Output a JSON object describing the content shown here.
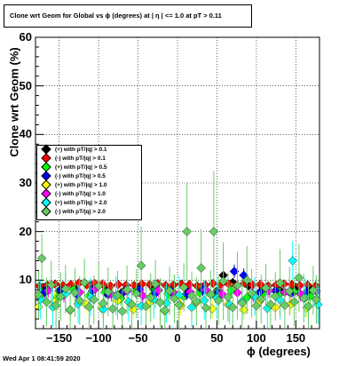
{
  "title": "Clone wrt Geom for Global vs ϕ (degrees) at | η | <= 1.0 at pT > 0.11",
  "timestamp": "Wed Apr  1 08:41:59 2020",
  "legend": [
    {
      "label": "(+) with pT/|q| > 0.1",
      "color": "#000000"
    },
    {
      "label": "(-) with pT/|q| > 0.1",
      "color": "#ff0000"
    },
    {
      "label": "(+) with pT/|q| > 0.5",
      "color": "#00ff00"
    },
    {
      "label": "(-) with pT/|q| > 0.5",
      "color": "#0000ff"
    },
    {
      "label": "(+) with pT/|q| > 1.0",
      "color": "#ffff00"
    },
    {
      "label": "(-) with pT/|q| > 1.0",
      "color": "#ff00ff"
    },
    {
      "label": "(+) with pT/|q| > 2.0",
      "color": "#00ffff"
    },
    {
      "label": "(-) with pT/|q| > 2.0",
      "color": "#66cc66"
    }
  ],
  "chart_data": {
    "type": "scatter",
    "xlabel": "ϕ (degrees)",
    "ylabel": "Clone wrt Geom (%)",
    "xlim": [
      -180,
      180
    ],
    "ylim": [
      0,
      60
    ],
    "xticks": [
      -150,
      -100,
      -50,
      0,
      50,
      100,
      150
    ],
    "yticks": [
      10,
      20,
      30,
      40,
      50,
      60
    ],
    "xtick_labels": [
      "−150",
      "−100",
      "−50",
      "0",
      "50",
      "100",
      "150"
    ],
    "ytick_labels": [
      "10",
      "20",
      "30",
      "40",
      "50",
      "60"
    ],
    "grid": true,
    "legend_position": "middle-left",
    "series": [
      {
        "name": "(+) with pT/|q| > 0.1",
        "color": "#000000",
        "x": [
          -170,
          -150,
          -130,
          -110,
          -90,
          -70,
          -50,
          -30,
          -10,
          10,
          30,
          50,
          58,
          70,
          90,
          110,
          130,
          150,
          170
        ],
        "y": [
          8.5,
          7.8,
          8.2,
          9.0,
          8.0,
          7.6,
          8.4,
          8.1,
          7.9,
          8.3,
          8.6,
          7.8,
          11.0,
          9.5,
          8.8,
          8.2,
          7.9,
          8.4,
          8.0
        ],
        "err": [
          0.8,
          0.8,
          0.8,
          0.8,
          0.8,
          0.8,
          0.8,
          0.8,
          0.8,
          0.8,
          0.8,
          0.8,
          1.0,
          0.9,
          0.8,
          0.8,
          0.8,
          0.8,
          0.8
        ]
      },
      {
        "name": "(-) with pT/|q| > 0.1",
        "color": "#ff0000",
        "x": [
          -175,
          -165,
          -155,
          -145,
          -135,
          -125,
          -115,
          -105,
          -95,
          -85,
          -75,
          -65,
          -55,
          -45,
          -35,
          -25,
          -15,
          -5,
          5,
          15,
          25,
          35,
          45,
          55,
          65,
          75,
          85,
          95,
          105,
          115,
          125,
          135,
          145,
          155,
          165,
          175
        ],
        "y": [
          8.8,
          9.0,
          9.2,
          8.9,
          9.1,
          9.4,
          9.0,
          9.3,
          9.2,
          8.8,
          9.1,
          9.0,
          8.9,
          9.2,
          9.1,
          9.3,
          8.9,
          9.0,
          9.2,
          9.1,
          8.8,
          9.0,
          9.3,
          9.1,
          9.2,
          8.9,
          9.4,
          9.0,
          9.1,
          8.8,
          9.0,
          9.2,
          9.1,
          8.9,
          9.0,
          8.8
        ],
        "err": [
          0.7,
          0.7,
          0.7,
          0.7,
          0.7,
          0.7,
          0.7,
          0.7,
          0.7,
          0.7,
          0.7,
          0.7,
          0.7,
          0.7,
          0.7,
          0.7,
          0.7,
          0.7,
          0.7,
          0.7,
          0.7,
          0.7,
          0.7,
          0.7,
          0.7,
          0.7,
          0.7,
          0.7,
          0.7,
          0.7,
          0.7,
          0.7,
          0.7,
          0.7,
          0.7,
          0.7
        ]
      },
      {
        "name": "(+) with pT/|q| > 0.5",
        "color": "#00ff00",
        "x": [
          -172,
          -152,
          -132,
          -112,
          -92,
          -72,
          -52,
          -32,
          -12,
          8,
          28,
          48,
          68,
          88,
          108,
          128,
          148,
          168
        ],
        "y": [
          7.0,
          6.5,
          8.0,
          6.8,
          7.5,
          6.2,
          7.8,
          6.9,
          7.2,
          6.6,
          7.4,
          6.8,
          7.9,
          6.4,
          7.1,
          6.9,
          7.6,
          6.7
        ],
        "err": [
          1.5,
          1.5,
          1.5,
          1.5,
          1.5,
          1.5,
          1.5,
          1.5,
          1.5,
          1.5,
          1.5,
          1.5,
          1.5,
          1.5,
          1.5,
          1.5,
          1.5,
          1.5
        ]
      },
      {
        "name": "(-) with pT/|q| > 0.5",
        "color": "#0000ff",
        "x": [
          -168,
          -148,
          -128,
          -108,
          -88,
          -68,
          -48,
          -28,
          -8,
          12,
          32,
          52,
          72,
          84,
          104,
          124,
          144,
          164
        ],
        "y": [
          7.5,
          8.0,
          7.2,
          7.8,
          7.0,
          7.6,
          8.1,
          7.3,
          7.7,
          7.1,
          7.9,
          7.4,
          11.8,
          11.0,
          7.5,
          7.8,
          7.2,
          7.6
        ],
        "err": [
          1.2,
          1.2,
          1.2,
          1.2,
          1.2,
          1.2,
          1.2,
          1.2,
          1.2,
          1.2,
          1.2,
          1.2,
          1.4,
          1.4,
          1.2,
          1.2,
          1.2,
          1.2
        ]
      },
      {
        "name": "(+) with pT/|q| > 1.0",
        "color": "#ffff00",
        "x": [
          -176,
          -156,
          -136,
          -116,
          -96,
          -76,
          -56,
          -36,
          -16,
          4,
          24,
          44,
          64,
          84,
          104,
          124,
          144,
          164
        ],
        "y": [
          4.5,
          5.5,
          3.8,
          5.0,
          4.2,
          5.8,
          4.0,
          5.2,
          3.6,
          4.8,
          5.4,
          4.1,
          5.0,
          3.9,
          5.6,
          4.4,
          5.1,
          4.3
        ],
        "err": [
          2.0,
          2.0,
          2.0,
          2.0,
          2.0,
          2.0,
          2.0,
          2.0,
          2.0,
          2.0,
          2.0,
          2.0,
          2.0,
          2.0,
          2.0,
          2.0,
          2.0,
          2.0
        ]
      },
      {
        "name": "(-) with pT/|q| > 1.0",
        "color": "#ff00ff",
        "x": [
          -164,
          -144,
          -124,
          -104,
          -84,
          -64,
          -44,
          -24,
          -4,
          16,
          36,
          56,
          76,
          96,
          116,
          136,
          156,
          176
        ],
        "y": [
          7.8,
          6.9,
          7.5,
          8.2,
          7.1,
          7.7,
          6.8,
          7.9,
          7.3,
          7.6,
          8.0,
          7.2,
          7.4,
          6.9,
          7.8,
          7.5,
          7.1,
          7.7
        ],
        "err": [
          1.5,
          1.5,
          1.5,
          1.5,
          1.5,
          1.5,
          1.5,
          1.5,
          1.5,
          1.5,
          1.5,
          1.5,
          1.5,
          1.5,
          1.5,
          1.5,
          1.5,
          1.5
        ]
      },
      {
        "name": "(+) with pT/|q| > 2.0",
        "color": "#00ffff",
        "x": [
          -174,
          -158,
          -142,
          -126,
          -110,
          -94,
          -78,
          -62,
          -46,
          -30,
          -14,
          2,
          18,
          34,
          50,
          66,
          82,
          98,
          114,
          130,
          146,
          162,
          178
        ],
        "y": [
          6.0,
          4.5,
          7.2,
          5.1,
          6.5,
          4.0,
          6.8,
          5.5,
          4.7,
          6.1,
          5.3,
          6.9,
          4.4,
          5.8,
          6.3,
          4.9,
          5.6,
          6.7,
          4.2,
          5.9,
          14.0,
          6.4,
          5.0
        ],
        "err": [
          4.0,
          4.0,
          4.0,
          4.0,
          4.0,
          4.0,
          4.0,
          4.0,
          4.0,
          4.0,
          4.0,
          4.0,
          4.0,
          4.0,
          4.0,
          4.0,
          4.0,
          4.0,
          4.0,
          4.0,
          4.0,
          4.0,
          4.0
        ]
      },
      {
        "name": "(-) with pT/|q| > 2.0",
        "color": "#66cc66",
        "x": [
          -176,
          -172,
          -166,
          -160,
          -154,
          -148,
          -142,
          -136,
          -130,
          -124,
          -118,
          -112,
          -106,
          -100,
          -94,
          -88,
          -82,
          -76,
          -70,
          -64,
          -58,
          -52,
          -46,
          -40,
          -34,
          -28,
          -22,
          -16,
          -10,
          -4,
          2,
          8,
          12,
          18,
          24,
          30,
          36,
          42,
          46,
          52,
          58,
          64,
          70,
          76,
          82,
          88,
          94,
          100,
          106,
          112,
          118,
          124,
          130,
          136,
          142,
          148,
          154,
          160,
          166,
          172,
          176
        ],
        "y": [
          7.0,
          14.5,
          5.5,
          9.0,
          4.8,
          6.6,
          8.2,
          3.9,
          7.4,
          5.8,
          9.5,
          4.5,
          6.0,
          8.8,
          5.2,
          7.6,
          4.1,
          6.9,
          3.6,
          8.0,
          5.0,
          7.2,
          13.0,
          4.6,
          6.4,
          9.2,
          5.4,
          3.8,
          7.8,
          6.2,
          4.9,
          8.5,
          20.0,
          6.8,
          5.6,
          12.5,
          4.3,
          7.0,
          20.0,
          5.8,
          9.8,
          6.5,
          4.4,
          8.9,
          5.3,
          10.0,
          7.3,
          4.7,
          6.1,
          8.4,
          5.0,
          6.7,
          9.4,
          4.8,
          7.7,
          5.5,
          10.5,
          6.3,
          4.6,
          7.9,
          6.0
        ],
        "err": [
          5.0,
          5.0,
          5.0,
          5.0,
          5.0,
          5.0,
          5.0,
          5.0,
          5.0,
          5.0,
          5.0,
          5.0,
          5.0,
          5.0,
          5.0,
          5.0,
          5.0,
          5.0,
          5.0,
          5.0,
          5.0,
          5.0,
          8.0,
          5.0,
          5.0,
          5.0,
          5.0,
          5.0,
          5.0,
          5.0,
          5.0,
          5.0,
          10.0,
          5.0,
          5.0,
          8.0,
          5.0,
          5.0,
          12.5,
          5.0,
          8.0,
          5.0,
          5.0,
          7.0,
          5.0,
          7.0,
          5.0,
          5.0,
          5.0,
          5.0,
          5.0,
          5.0,
          7.0,
          5.0,
          5.0,
          5.0,
          7.0,
          5.0,
          5.0,
          5.0,
          5.0
        ]
      }
    ]
  }
}
